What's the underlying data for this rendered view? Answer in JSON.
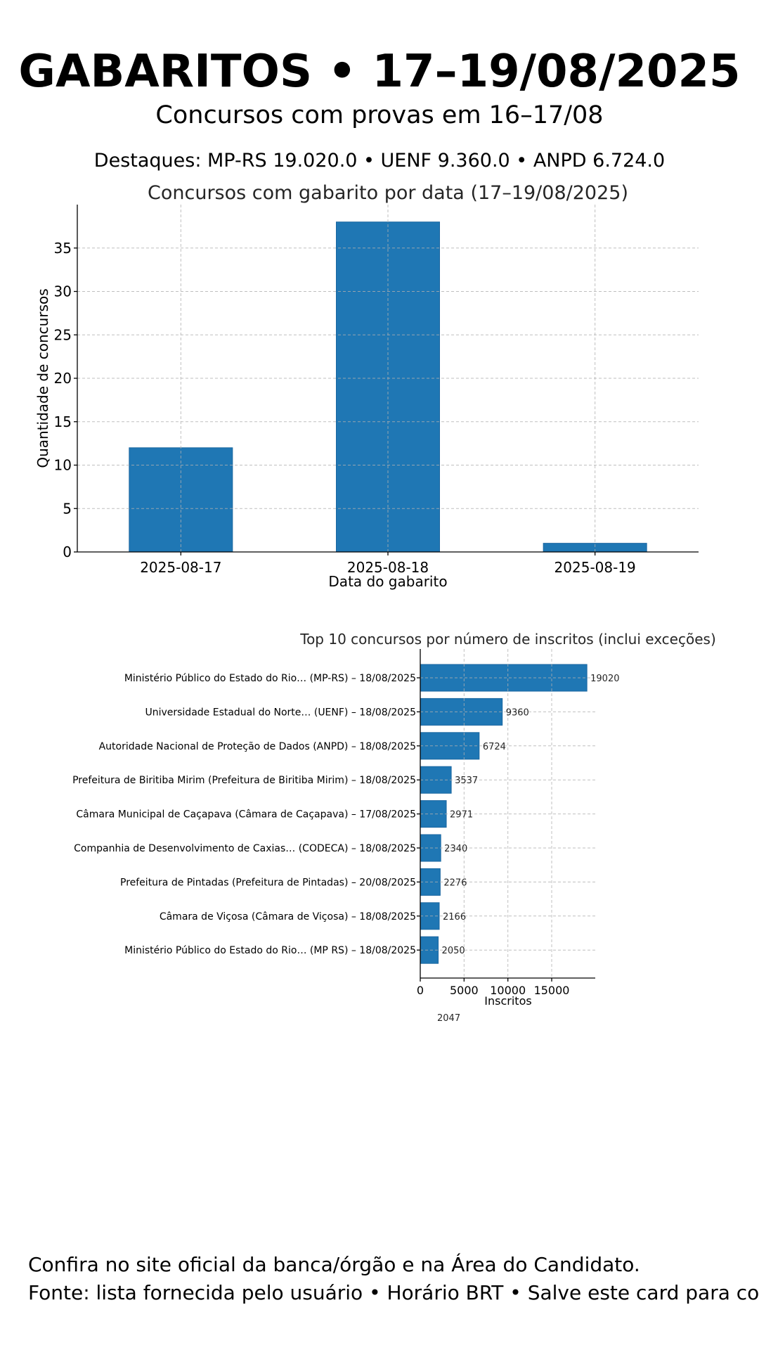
{
  "header": {
    "title": "GABARITOS • 17–19/08/2025",
    "subtitle": "Concursos com provas em 16–17/08",
    "highlights": "Destaques: MP-RS 19.020.0 • UENF 9.360.0 • ANPD 6.724.0"
  },
  "footer": {
    "line1": "Confira no site oficial da banca/órgão e na Área do Candidato.",
    "line2": "Fonte: lista fornecida pelo usuário • Horário BRT • Salve este card para consultar"
  },
  "colors": {
    "bar": "#1f77b4"
  },
  "chart_data": [
    {
      "type": "bar",
      "title": "Concursos com gabarito por data (17–19/08/2025)",
      "xlabel": "Data do gabarito",
      "ylabel": "Quantidade de concursos",
      "categories": [
        "2025-08-17",
        "2025-08-18",
        "2025-08-19"
      ],
      "values": [
        12,
        38,
        1
      ],
      "ylim": [
        0,
        40
      ],
      "yticks": [
        0,
        5,
        10,
        15,
        20,
        25,
        30,
        35
      ],
      "grid": true
    },
    {
      "type": "bar",
      "orientation": "horizontal",
      "title": "Top 10 concursos por número de inscritos (inclui exceções)",
      "xlabel": "Inscritos",
      "categories": [
        "Ministério Público do Estado do Rio… (MP-RS) – 18/08/2025",
        "Universidade Estadual do Norte… (UENF) – 18/08/2025",
        "Autoridade Nacional de Proteção de Dados (ANPD) – 18/08/2025",
        "Prefeitura de Biritiba Mirim (Prefeitura de Biritiba Mirim) – 18/08/2025",
        "Câmara Municipal de Caçapava (Câmara de Caçapava) – 17/08/2025",
        "Companhia de Desenvolvimento de Caxias… (CODECA) – 18/08/2025",
        "Prefeitura de Pintadas (Prefeitura de Pintadas) – 20/08/2025",
        "Câmara de Viçosa (Câmara de Viçosa) – 18/08/2025",
        "Ministério Público do Estado do Rio… (MP RS) – 18/08/2025"
      ],
      "values": [
        19020,
        9360,
        6724,
        3537,
        2971,
        2340,
        2276,
        2166,
        2050
      ],
      "overflow_label": "2047",
      "xlim": [
        0,
        19971
      ],
      "xticks": [
        0,
        5000,
        10000,
        15000
      ],
      "grid": true
    }
  ]
}
